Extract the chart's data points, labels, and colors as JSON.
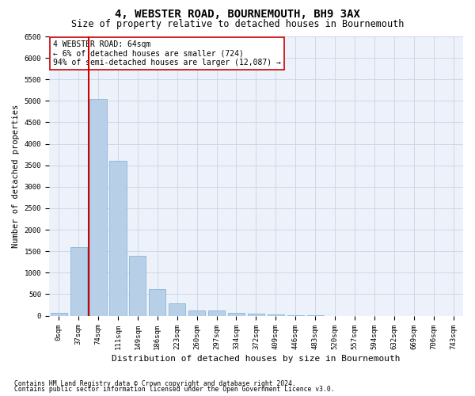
{
  "title": "4, WEBSTER ROAD, BOURNEMOUTH, BH9 3AX",
  "subtitle": "Size of property relative to detached houses in Bournemouth",
  "xlabel": "Distribution of detached houses by size in Bournemouth",
  "ylabel": "Number of detached properties",
  "footnote1": "Contains HM Land Registry data © Crown copyright and database right 2024.",
  "footnote2": "Contains public sector information licensed under the Open Government Licence v3.0.",
  "categories": [
    "0sqm",
    "37sqm",
    "74sqm",
    "111sqm",
    "149sqm",
    "186sqm",
    "223sqm",
    "260sqm",
    "297sqm",
    "334sqm",
    "372sqm",
    "409sqm",
    "446sqm",
    "483sqm",
    "520sqm",
    "557sqm",
    "594sqm",
    "632sqm",
    "669sqm",
    "706sqm",
    "743sqm"
  ],
  "values": [
    60,
    1600,
    5050,
    3600,
    1400,
    620,
    280,
    130,
    120,
    70,
    50,
    20,
    10,
    5,
    0,
    0,
    0,
    0,
    0,
    0,
    0
  ],
  "bar_color": "#b8cfe8",
  "bar_edge_color": "#7aafd4",
  "grid_color": "#c8d4e8",
  "background_color": "#edf2fa",
  "vline_x": 1.5,
  "vline_color": "#cc0000",
  "annotation_box_text": "4 WEBSTER ROAD: 64sqm\n← 6% of detached houses are smaller (724)\n94% of semi-detached houses are larger (12,087) →",
  "annotation_box_color": "#cc0000",
  "ylim": [
    0,
    6500
  ],
  "yticks": [
    0,
    500,
    1000,
    1500,
    2000,
    2500,
    3000,
    3500,
    4000,
    4500,
    5000,
    5500,
    6000,
    6500
  ],
  "title_fontsize": 10,
  "subtitle_fontsize": 8.5,
  "xlabel_fontsize": 8,
  "ylabel_fontsize": 7.5,
  "tick_fontsize": 6.5,
  "annot_fontsize": 7,
  "footnote_fontsize": 5.8
}
